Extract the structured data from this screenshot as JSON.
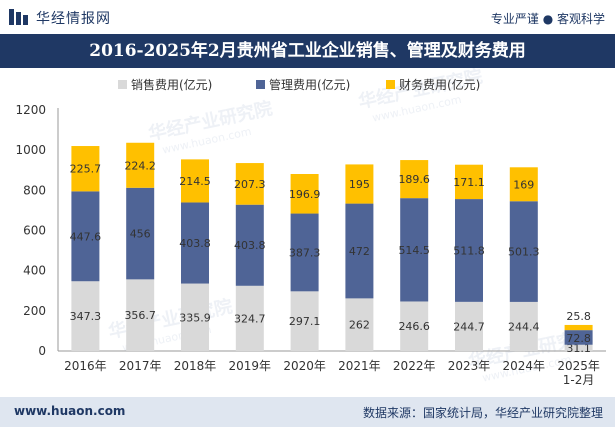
{
  "header": {
    "brand": "华经情报网",
    "tagline": "专业严谨 ● 客观科学",
    "title": "2016-2025年2月贵州省工业企业销售、管理及财务费用"
  },
  "footer": {
    "website": "www.huaon.com",
    "source": "数据来源：国家统计局，华经产业研究院整理"
  },
  "watermark": {
    "cn": "华经产业研究院",
    "en": "www.huaon.com"
  },
  "colors": {
    "sales": "#d9d9d9",
    "management": "#4f6496",
    "finance": "#ffc000",
    "brand": "#1f3864"
  },
  "chart_data": {
    "type": "bar",
    "stacked": true,
    "categories": [
      "2016年",
      "2017年",
      "2018年",
      "2019年",
      "2020年",
      "2021年",
      "2022年",
      "2023年",
      "2024年",
      "2025年\n1-2月"
    ],
    "series": [
      {
        "name": "销售费用(亿元)",
        "values": [
          347.3,
          356.7,
          335.9,
          324.7,
          297.1,
          262,
          246.6,
          244.7,
          244.4,
          31.1
        ]
      },
      {
        "name": "管理费用(亿元)",
        "values": [
          447.6,
          456,
          403.8,
          403.8,
          387.3,
          472,
          514.5,
          511.8,
          501.3,
          72.8
        ]
      },
      {
        "name": "财务费用(亿元)",
        "values": [
          225.7,
          224.2,
          214.5,
          207.3,
          196.9,
          195,
          189.6,
          171.1,
          169,
          25.8
        ]
      }
    ],
    "ylim": [
      0,
      1200
    ],
    "yticks": [
      0,
      200,
      400,
      600,
      800,
      1000,
      1200
    ],
    "legend": "top-center"
  }
}
